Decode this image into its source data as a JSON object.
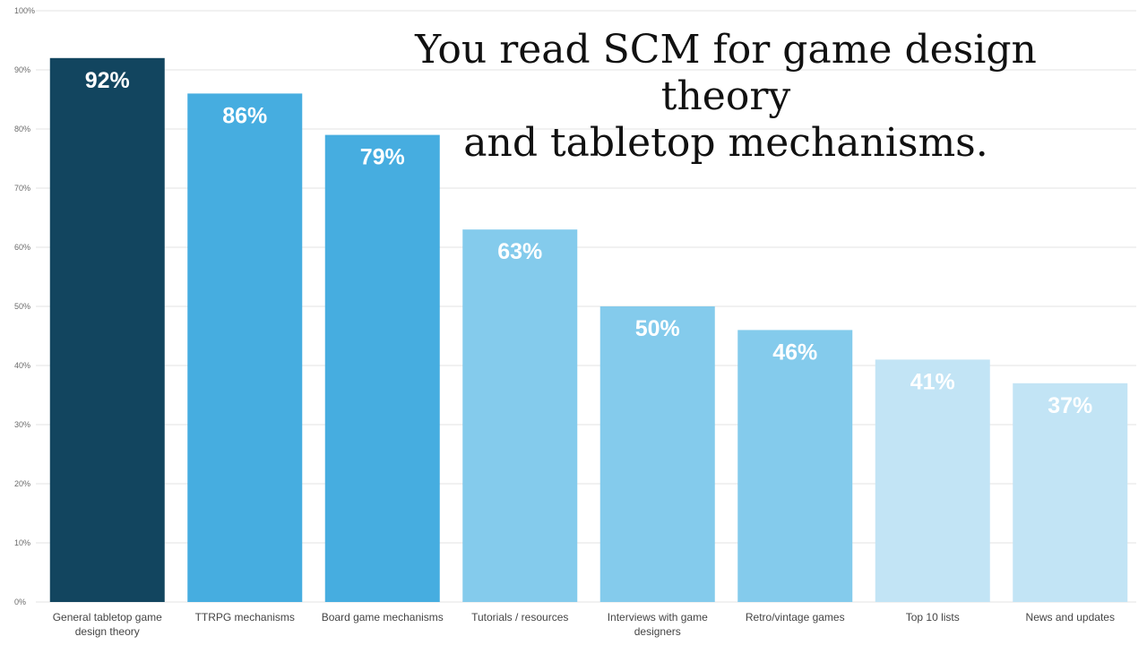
{
  "chart_data": {
    "type": "bar",
    "title_lines": [
      "You read SCM for game design theory",
      "and tabletop mechanisms."
    ],
    "categories": [
      [
        "General tabletop game",
        "design theory"
      ],
      [
        "TTRPG mechanisms"
      ],
      [
        "Board game mechanisms"
      ],
      [
        "Tutorials / resources"
      ],
      [
        "Interviews with game",
        "designers"
      ],
      [
        "Retro/vintage games"
      ],
      [
        "Top 10 lists"
      ],
      [
        "News and updates"
      ]
    ],
    "values": [
      92,
      86,
      79,
      63,
      50,
      46,
      41,
      37
    ],
    "data_labels": [
      "92%",
      "86%",
      "79%",
      "63%",
      "50%",
      "46%",
      "41%",
      "37%"
    ],
    "bar_colors": [
      "#12455f",
      "#46ade0",
      "#46ade0",
      "#84cbec",
      "#84cbec",
      "#84cbec",
      "#c2e4f5",
      "#c2e4f5"
    ],
    "y_ticks": [
      "0%",
      "10%",
      "20%",
      "30%",
      "40%",
      "50%",
      "60%",
      "70%",
      "80%",
      "90%",
      "100%"
    ],
    "ylim": [
      0,
      100
    ],
    "grid": true,
    "xlabel": "",
    "ylabel": ""
  }
}
